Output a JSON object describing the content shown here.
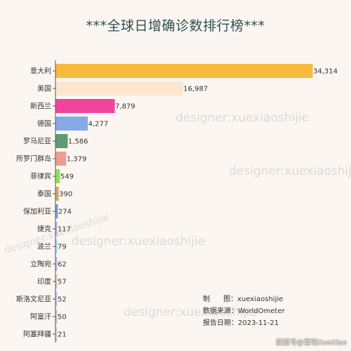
{
  "chart_data": {
    "type": "bar",
    "orientation": "horizontal",
    "title": "***全球日增确诊数排行榜***",
    "categories": [
      "意大利",
      "美国",
      "新西兰",
      "德国",
      "罗马尼亚",
      "所罗门群岛",
      "菲律宾",
      "泰国",
      "保加利亚",
      "捷克",
      "波兰",
      "立陶宛",
      "印度",
      "斯洛文尼亚",
      "阿富汗",
      "阿塞拜疆"
    ],
    "values": [
      34314,
      16987,
      7879,
      4277,
      1586,
      1379,
      549,
      390,
      274,
      117,
      79,
      62,
      57,
      52,
      50,
      21
    ],
    "value_labels": [
      "34,314",
      "16,987",
      "7,879",
      "4,277",
      "1,586",
      "1,379",
      "549",
      "390",
      "274",
      "117",
      "79",
      "62",
      "57",
      "52",
      "50",
      "21"
    ],
    "colors": [
      "#f8b93c",
      "#fde6cf",
      "#f0449c",
      "#86a9e8",
      "#5e9a72",
      "#f19a90",
      "#8ee052",
      "#d3a86a",
      "#6f9fdc",
      "#c9b2e0",
      "#a6dbe6",
      "#c8b9e0",
      "#e6c8b0",
      "#c0c8f0",
      "#c8c8c8",
      "#d6d6d6"
    ],
    "xlim": [
      0,
      34314
    ],
    "grid": false,
    "legend": "none"
  },
  "credits": {
    "maker": "制      图：xuexiaoshijie",
    "source": "数据来源：WorldOmeter",
    "date": "报告日期：2023-11-21"
  },
  "watermarks": [
    "designer:xuexiaoshijie",
    "designer:xuexiaoshijie",
    "designer:xuexiaoshijie",
    "designer:xuexiaoshijie",
    "designer:xuexiaoshijie"
  ],
  "source_watermark": "搜狐号@雪晓XueXiao"
}
